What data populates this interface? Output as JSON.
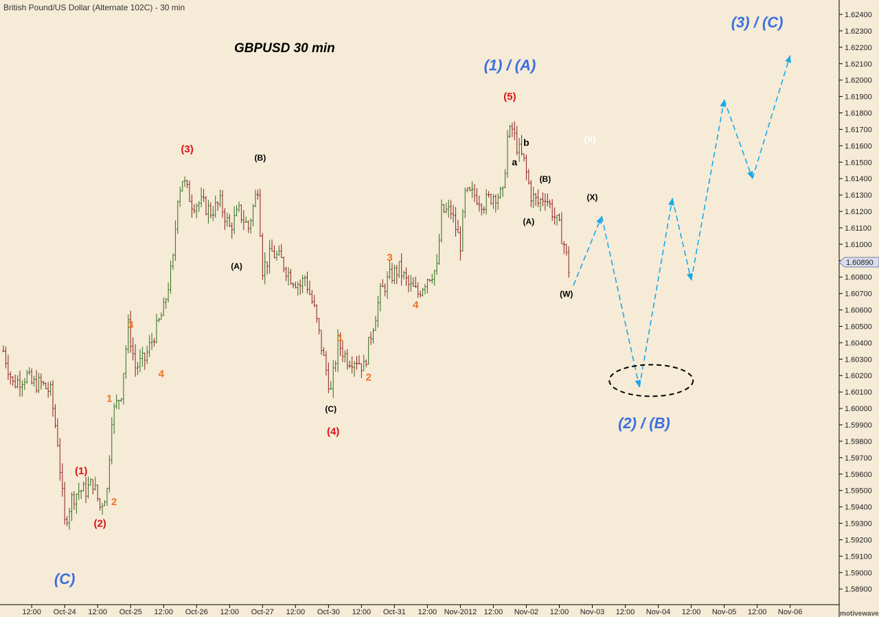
{
  "header": {
    "instrument": "British Pound/US Dollar (Alternate 102C) - 30 min"
  },
  "watermark": "motivewave.com",
  "chart_data": {
    "type": "ohlc",
    "title": "GBPUSD  30 min",
    "symbol": "GBPUSD",
    "timeframe": "30 min",
    "ylim": [
      1.588,
      1.625
    ],
    "y_ticks": [
      "1.62400",
      "1.62300",
      "1.62200",
      "1.62100",
      "1.62000",
      "1.61900",
      "1.61800",
      "1.61700",
      "1.61600",
      "1.61500",
      "1.61400",
      "1.61300",
      "1.61200",
      "1.61100",
      "1.61000",
      "1.60900",
      "1.60800",
      "1.60700",
      "1.60600",
      "1.60500",
      "1.60400",
      "1.60300",
      "1.60200",
      "1.60100",
      "1.60000",
      "1.59900",
      "1.59800",
      "1.59700",
      "1.59600",
      "1.59500",
      "1.59400",
      "1.59300",
      "1.59200",
      "1.59100",
      "1.59000",
      "1.58900"
    ],
    "x_ticks": [
      {
        "label": "12:00",
        "slot": 12
      },
      {
        "label": "Oct-24",
        "slot": 26
      },
      {
        "label": "12:00",
        "slot": 40
      },
      {
        "label": "Oct-25",
        "slot": 54
      },
      {
        "label": "12:00",
        "slot": 68
      },
      {
        "label": "Oct-26",
        "slot": 82
      },
      {
        "label": "12:00",
        "slot": 96
      },
      {
        "label": "Oct-27",
        "slot": 110
      },
      {
        "label": "12:00",
        "slot": 124
      },
      {
        "label": "Oct-30",
        "slot": 138
      },
      {
        "label": "12:00",
        "slot": 152
      },
      {
        "label": "Oct-31",
        "slot": 166
      },
      {
        "label": "12:00",
        "slot": 180
      },
      {
        "label": "Nov-2012",
        "slot": 194
      },
      {
        "label": "12:00",
        "slot": 208
      },
      {
        "label": "Nov-02",
        "slot": 222
      },
      {
        "label": "12:00",
        "slot": 236
      },
      {
        "label": "Nov-03",
        "slot": 250
      },
      {
        "label": "12:00",
        "slot": 264
      },
      {
        "label": "Nov-04",
        "slot": 278
      },
      {
        "label": "12:00",
        "slot": 292
      },
      {
        "label": "Nov-05",
        "slot": 306
      },
      {
        "label": "12:00",
        "slot": 320
      },
      {
        "label": "Nov-06",
        "slot": 334
      }
    ],
    "last_price": "1.60890",
    "bar_colors": {
      "up": "#2e6b1a",
      "down": "#8b1a1a"
    },
    "price_path": [
      [
        0,
        1.6035
      ],
      [
        4,
        1.6015
      ],
      [
        10,
        1.602
      ],
      [
        12,
        1.6015
      ],
      [
        16,
        1.6015
      ],
      [
        20,
        1.601
      ],
      [
        23,
        1.598
      ],
      [
        26,
        1.593
      ],
      [
        29,
        1.5945
      ],
      [
        32,
        1.595
      ],
      [
        35,
        1.595
      ],
      [
        38,
        1.5955
      ],
      [
        41,
        1.594
      ],
      [
        44,
        1.595
      ],
      [
        46,
        1.5995
      ],
      [
        50,
        1.601
      ],
      [
        53,
        1.605
      ],
      [
        56,
        1.6025
      ],
      [
        60,
        1.603
      ],
      [
        64,
        1.6045
      ],
      [
        68,
        1.606
      ],
      [
        72,
        1.609
      ],
      [
        74,
        1.613
      ],
      [
        76,
        1.614
      ],
      [
        80,
        1.6125
      ],
      [
        84,
        1.6125
      ],
      [
        88,
        1.612
      ],
      [
        92,
        1.6125
      ],
      [
        96,
        1.611
      ],
      [
        100,
        1.612
      ],
      [
        104,
        1.611
      ],
      [
        108,
        1.6135
      ],
      [
        110,
        1.6085
      ],
      [
        114,
        1.6095
      ],
      [
        118,
        1.609
      ],
      [
        122,
        1.608
      ],
      [
        126,
        1.6075
      ],
      [
        128,
        1.608
      ],
      [
        132,
        1.606
      ],
      [
        134,
        1.6045
      ],
      [
        136,
        1.603
      ],
      [
        139,
        1.601
      ],
      [
        142,
        1.604
      ],
      [
        146,
        1.603
      ],
      [
        150,
        1.603
      ],
      [
        153,
        1.6025
      ],
      [
        156,
        1.6045
      ],
      [
        160,
        1.607
      ],
      [
        164,
        1.608
      ],
      [
        168,
        1.6085
      ],
      [
        172,
        1.6075
      ],
      [
        176,
        1.607
      ],
      [
        180,
        1.608
      ],
      [
        184,
        1.6085
      ],
      [
        186,
        1.612
      ],
      [
        190,
        1.612
      ],
      [
        194,
        1.61
      ],
      [
        196,
        1.613
      ],
      [
        200,
        1.613
      ],
      [
        204,
        1.6125
      ],
      [
        208,
        1.613
      ],
      [
        212,
        1.613
      ],
      [
        214,
        1.6165
      ],
      [
        216,
        1.617
      ],
      [
        218,
        1.616
      ],
      [
        221,
        1.615
      ],
      [
        224,
        1.613
      ],
      [
        227,
        1.6125
      ],
      [
        230,
        1.613
      ],
      [
        233,
        1.612
      ],
      [
        236,
        1.611
      ],
      [
        238,
        1.61
      ],
      [
        240,
        1.6085
      ]
    ],
    "projection": [
      [
        242,
        1.6075
      ],
      [
        254,
        1.6117
      ],
      [
        270,
        1.6013
      ],
      [
        284,
        1.6128
      ],
      [
        292,
        1.6078
      ],
      [
        306,
        1.6188
      ],
      [
        318,
        1.614
      ],
      [
        334,
        1.6215
      ]
    ],
    "target_zone": {
      "slot": 275,
      "price": 1.6017
    },
    "annotations": [
      {
        "text": "(C)",
        "slot": 26,
        "price": 1.5893,
        "color": "#3b6fe0",
        "size": 22,
        "italic": true
      },
      {
        "text": "(1)",
        "slot": 33,
        "price": 1.596,
        "color": "#dd1111",
        "size": 15
      },
      {
        "text": "(2)",
        "slot": 41,
        "price": 1.5928,
        "color": "#dd1111",
        "size": 15
      },
      {
        "text": "2",
        "slot": 47,
        "price": 1.5941,
        "color": "#f07020",
        "size": 15
      },
      {
        "text": "1",
        "slot": 45,
        "price": 1.6004,
        "color": "#f07020",
        "size": 15
      },
      {
        "text": "3",
        "slot": 54,
        "price": 1.6049,
        "color": "#f07020",
        "size": 15
      },
      {
        "text": "4",
        "slot": 67,
        "price": 1.6019,
        "color": "#f07020",
        "size": 15
      },
      {
        "text": "(3)",
        "slot": 78,
        "price": 1.6156,
        "color": "#dd1111",
        "size": 15
      },
      {
        "text": "(B)",
        "slot": 109,
        "price": 1.6151,
        "color": "#000000",
        "size": 12
      },
      {
        "text": "(A)",
        "slot": 99,
        "price": 1.6085,
        "color": "#000000",
        "size": 12
      },
      {
        "text": "(C)",
        "slot": 139,
        "price": 1.5998,
        "color": "#000000",
        "size": 12
      },
      {
        "text": "(4)",
        "slot": 140,
        "price": 1.5984,
        "color": "#dd1111",
        "size": 15
      },
      {
        "text": "1",
        "slot": 143,
        "price": 1.6041,
        "color": "#f07020",
        "size": 15
      },
      {
        "text": "2",
        "slot": 155,
        "price": 1.6017,
        "color": "#f07020",
        "size": 15
      },
      {
        "text": "3",
        "slot": 164,
        "price": 1.609,
        "color": "#f07020",
        "size": 15
      },
      {
        "text": "4",
        "slot": 175,
        "price": 1.6061,
        "color": "#f07020",
        "size": 15
      },
      {
        "text": "(1) / (A)",
        "slot": 215,
        "price": 1.6206,
        "color": "#3b6fe0",
        "size": 22,
        "italic": true
      },
      {
        "text": "(5)",
        "slot": 215,
        "price": 1.6188,
        "color": "#dd1111",
        "size": 15
      },
      {
        "text": "b",
        "slot": 222,
        "price": 1.616,
        "color": "#000000",
        "size": 14
      },
      {
        "text": "a",
        "slot": 217,
        "price": 1.6148,
        "color": "#000000",
        "size": 14
      },
      {
        "text": "(B)",
        "slot": 230,
        "price": 1.6138,
        "color": "#000000",
        "size": 12
      },
      {
        "text": "(A)",
        "slot": 223,
        "price": 1.6112,
        "color": "#000000",
        "size": 12
      },
      {
        "text": "(X)",
        "slot": 249,
        "price": 1.6162,
        "color": "#ffffff",
        "size": 13
      },
      {
        "text": "(X)",
        "slot": 250,
        "price": 1.6127,
        "color": "#000000",
        "size": 12
      },
      {
        "text": "(W)",
        "slot": 239,
        "price": 1.6068,
        "color": "#000000",
        "size": 12
      },
      {
        "text": "(2) / (B)",
        "slot": 272,
        "price": 1.5988,
        "color": "#3b6fe0",
        "size": 22,
        "italic": true
      },
      {
        "text": "(3) / (C)",
        "slot": 320,
        "price": 1.6232,
        "color": "#3b6fe0",
        "size": 22,
        "italic": true
      }
    ]
  }
}
